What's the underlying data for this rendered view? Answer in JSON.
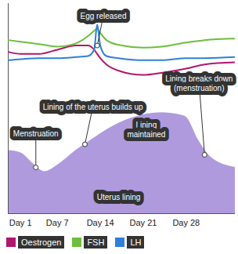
{
  "chart_data": {
    "type": "line",
    "xlim": [
      -1,
      36
    ],
    "xticks": [
      {
        "value": 1,
        "label": "Day 1"
      },
      {
        "value": 7,
        "label": "Day 7"
      },
      {
        "value": 14,
        "label": "Day 14"
      },
      {
        "value": 21,
        "label": "Day 21"
      },
      {
        "value": 28,
        "label": "Day 28"
      }
    ],
    "ylim": [
      0,
      100
    ],
    "tick_labels": "x",
    "legend": "bottom",
    "x": [
      -1,
      1,
      4,
      7,
      10,
      12,
      13,
      13.5,
      14,
      15,
      17,
      21,
      24,
      28,
      31,
      36
    ],
    "series": [
      {
        "name": "Oestrogen",
        "color": "#b0166e",
        "values": [
          77,
          76,
          76,
          78,
          80,
          80,
          78,
          76,
          74,
          71,
          68,
          66,
          67,
          69,
          71,
          72
        ]
      },
      {
        "name": "FSH",
        "color": "#6cbf3c",
        "values": [
          82.6,
          81.8,
          80.7,
          79.5,
          81,
          84.5,
          87,
          88,
          86,
          82.6,
          80.3,
          79,
          79.5,
          81.4,
          82.6,
          83.3
        ]
      },
      {
        "name": "LH",
        "color": "#2f7fd8",
        "values": [
          73,
          73.5,
          74,
          74,
          74.5,
          75,
          78,
          90,
          80,
          75,
          74,
          73,
          73,
          74,
          74,
          74.5
        ]
      }
    ],
    "uterus_lining": {
      "type": "area",
      "color": "#b09ade",
      "x": [
        -1,
        1,
        3,
        5,
        7,
        10,
        13,
        14,
        17,
        21,
        24,
        27,
        28,
        30,
        32,
        36
      ],
      "values": [
        30,
        29,
        24,
        20,
        23,
        30,
        36,
        38,
        43,
        47,
        48,
        47,
        46,
        35,
        27,
        22
      ]
    },
    "annotations": [
      {
        "text": "Egg released",
        "x": 14.5,
        "y": 94,
        "arrow_to": [
          13.5,
          80
        ]
      },
      {
        "text": "Lining of the uterus builds up",
        "x": 12.8,
        "y": 51,
        "arrow_to": [
          11.5,
          33
        ]
      },
      {
        "text": "Lining breaks down\n(menstruation)",
        "x": 30.1,
        "y": 62,
        "arrow_to": [
          31,
          28
        ]
      },
      {
        "text": "Menstruation",
        "x": 3.5,
        "y": 38,
        "arrow_to": [
          3.5,
          22
        ]
      },
      {
        "text": "Lining\nmaintained",
        "x": 21.5,
        "y": 40
      },
      {
        "text": "Uterus lining",
        "x": 17,
        "y": 8
      }
    ]
  }
}
